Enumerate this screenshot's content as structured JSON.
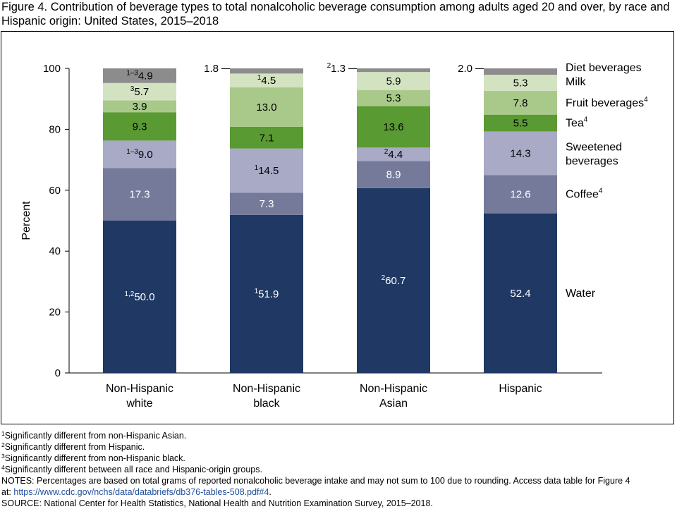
{
  "title": "Figure 4. Contribution of beverage types to total nonalcoholic beverage consumption among adults aged 20 and over, by race and Hispanic origin: United States, 2015–2018",
  "chart_data": {
    "type": "bar",
    "stacked": true,
    "ylabel": "Percent",
    "ylim": [
      0,
      100
    ],
    "yticks": [
      0,
      20,
      40,
      60,
      80,
      100
    ],
    "grid": false,
    "legend": "right",
    "categories": [
      {
        "line1": "Non-Hispanic",
        "line2": "white"
      },
      {
        "line1": "Non-Hispanic",
        "line2": "black"
      },
      {
        "line1": "Non-Hispanic",
        "line2": "Asian"
      },
      {
        "line1": "Hispanic",
        "line2": ""
      }
    ],
    "series": [
      {
        "name": "Water",
        "sup": "",
        "color": "#1f3864",
        "values": [
          50.0,
          51.9,
          60.7,
          52.4
        ],
        "labels": [
          "50.0",
          "51.9",
          "60.7",
          "52.4"
        ],
        "label_sups": [
          "1,2",
          "1",
          "2",
          ""
        ],
        "text_color": "#ffffff"
      },
      {
        "name": "Coffee",
        "sup": "4",
        "color": "#767a9a",
        "values": [
          17.3,
          7.3,
          8.9,
          12.6
        ],
        "labels": [
          "17.3",
          "7.3",
          "8.9",
          "12.6"
        ],
        "label_sups": [
          "",
          "",
          "",
          ""
        ],
        "text_color": "#ffffff"
      },
      {
        "name": "Sweetened",
        "name2": "beverages",
        "sup": "",
        "color": "#a8aac6",
        "values": [
          9.0,
          14.5,
          4.4,
          14.3
        ],
        "labels": [
          "9.0",
          "14.5",
          "4.4",
          "14.3"
        ],
        "label_sups": [
          "1–3",
          "1",
          "2",
          ""
        ],
        "text_color": "#000000"
      },
      {
        "name": "Tea",
        "sup": "4",
        "color": "#5a9a32",
        "values": [
          9.3,
          7.1,
          13.6,
          5.5
        ],
        "labels": [
          "9.3",
          "7.1",
          "13.6",
          "5.5"
        ],
        "label_sups": [
          "",
          "",
          "",
          ""
        ],
        "text_color": "#000000"
      },
      {
        "name": "Fruit beverages",
        "sup": "4",
        "color": "#a9c98b",
        "values": [
          3.9,
          13.0,
          5.3,
          7.8
        ],
        "labels": [
          "3.9",
          "13.0",
          "5.3",
          "7.8"
        ],
        "label_sups": [
          "",
          "",
          "",
          ""
        ],
        "text_color": "#000000"
      },
      {
        "name": "Milk",
        "sup": "",
        "color": "#d3e3c2",
        "values": [
          5.7,
          4.5,
          5.9,
          5.3
        ],
        "labels": [
          "5.7",
          "4.5",
          "5.9",
          "5.3"
        ],
        "label_sups": [
          "3",
          "1",
          "",
          ""
        ],
        "text_color": "#000000"
      },
      {
        "name": "Diet beverages",
        "sup": "",
        "color": "#8c8c8c",
        "values": [
          4.9,
          1.8,
          1.3,
          2.0
        ],
        "labels": [
          "4.9",
          "1.8",
          "1.3",
          "2.0"
        ],
        "label_sups": [
          "1–3",
          "",
          "2",
          ""
        ],
        "text_color": "#000000",
        "outside_labels": [
          false,
          true,
          true,
          true
        ]
      }
    ]
  },
  "footnotes": [
    {
      "sup": "1",
      "text": "Significantly different from non-Hispanic Asian."
    },
    {
      "sup": "2",
      "text": "Significantly different from Hispanic."
    },
    {
      "sup": "3",
      "text": "Significantly different from non-Hispanic black."
    },
    {
      "sup": "4",
      "text": "Significantly different between all race and Hispanic-origin groups."
    }
  ],
  "notes_line1": "NOTES: Percentages are based on total grams of reported nonalcoholic beverage intake and may not sum to 100 due to rounding. Access data table for Figure 4",
  "notes_at": "at: ",
  "notes_link": "https://www.cdc.gov/nchs/data/databriefs/db376-tables-508.pdf#4",
  "notes_end": ".",
  "source": "SOURCE: National Center for Health Statistics, National Health and Nutrition Examination Survey, 2015–2018."
}
